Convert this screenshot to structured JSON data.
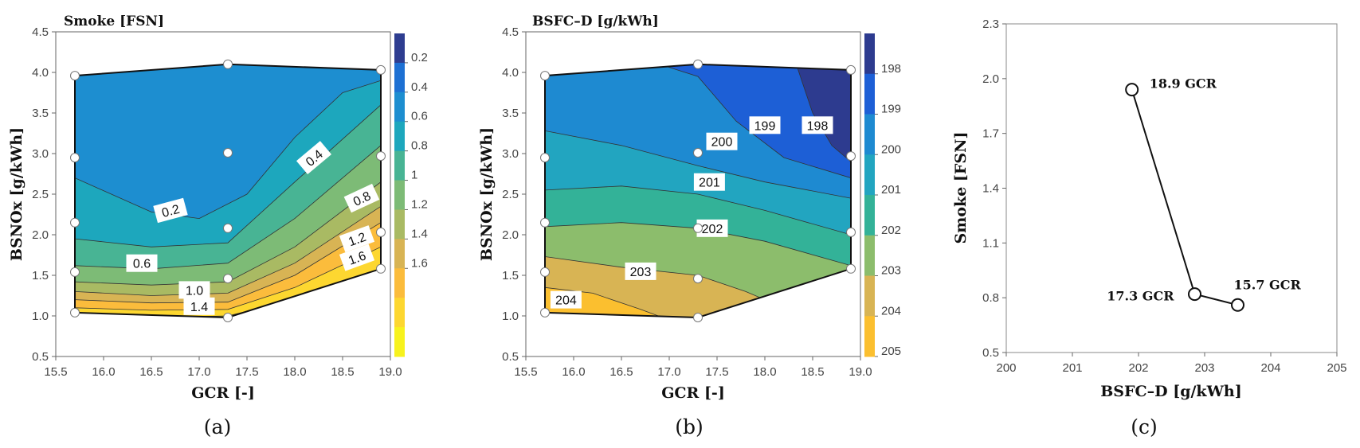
{
  "colors": {
    "smoke_bands": [
      "#f7f21d",
      "#fdd730",
      "#fbbc3c",
      "#d8b454",
      "#a9ba63",
      "#7dbb76",
      "#48b494",
      "#1da7bd",
      "#1d8ed0",
      "#1d70d3",
      "#2e3d90"
    ],
    "bsfc_bands": [
      "#fbbf2f",
      "#d8b454",
      "#8cbd6c",
      "#33b298",
      "#22a5c0",
      "#1e8ad1",
      "#1d5fd6",
      "#2d3b8f"
    ]
  },
  "chart_data": [
    {
      "id": "a",
      "type": "contour",
      "panel_label": "(a)",
      "title": "Smoke [FSN]",
      "xlabel": "GCR [-]",
      "ylabel": "BSNOx [g/kWh]",
      "xlim": [
        15.5,
        19.0
      ],
      "ylim": [
        0.5,
        4.5
      ],
      "xticks": [
        "15.5",
        "16.0",
        "16.5",
        "17.0",
        "17.5",
        "18.0",
        "18.5",
        "19.0"
      ],
      "yticks": [
        "0.5",
        "1.0",
        "1.5",
        "2.0",
        "2.5",
        "3.0",
        "3.5",
        "4.0",
        "4.5"
      ],
      "colorbar_ticks": [
        "0.2",
        "0.4",
        "0.6",
        "0.8",
        "1",
        "1.2",
        "1.4",
        "1.6"
      ],
      "region": [
        [
          15.7,
          1.04
        ],
        [
          17.3,
          0.98
        ],
        [
          18.9,
          1.58
        ],
        [
          18.9,
          4.03
        ],
        [
          17.3,
          4.1
        ],
        [
          15.7,
          3.96
        ]
      ],
      "boundaries": [
        {
          "level": 1.6,
          "points": [
            [
              15.7,
              1.0
            ],
            [
              16.5,
              0.98
            ],
            [
              17.3,
              1.0
            ],
            [
              18.0,
              1.2
            ],
            [
              18.9,
              1.5
            ]
          ]
        },
        {
          "level": 1.4,
          "points": [
            [
              15.7,
              1.1
            ],
            [
              16.5,
              1.07
            ],
            [
              17.3,
              1.08
            ],
            [
              18.0,
              1.35
            ],
            [
              18.9,
              1.85
            ]
          ]
        },
        {
          "level": 1.2,
          "points": [
            [
              15.7,
              1.2
            ],
            [
              16.5,
              1.16
            ],
            [
              17.3,
              1.17
            ],
            [
              18.0,
              1.5
            ],
            [
              18.9,
              2.15
            ]
          ]
        },
        {
          "level": 1.0,
          "points": [
            [
              15.7,
              1.3
            ],
            [
              16.5,
              1.25
            ],
            [
              17.3,
              1.28
            ],
            [
              18.0,
              1.65
            ],
            [
              18.9,
              2.35
            ]
          ]
        },
        {
          "level": 0.8,
          "points": [
            [
              15.7,
              1.42
            ],
            [
              16.5,
              1.38
            ],
            [
              17.3,
              1.42
            ],
            [
              18.0,
              1.85
            ],
            [
              18.9,
              2.65
            ]
          ]
        },
        {
          "level": 0.6,
          "points": [
            [
              15.7,
              1.62
            ],
            [
              16.5,
              1.58
            ],
            [
              17.3,
              1.65
            ],
            [
              18.0,
              2.2
            ],
            [
              18.9,
              3.1
            ]
          ]
        },
        {
          "level": 0.4,
          "points": [
            [
              15.7,
              1.95
            ],
            [
              16.5,
              1.85
            ],
            [
              17.3,
              1.9
            ],
            [
              18.0,
              2.65
            ],
            [
              18.9,
              3.6
            ]
          ]
        },
        {
          "level": 0.2,
          "points": [
            [
              15.7,
              2.7
            ],
            [
              16.5,
              2.28
            ],
            [
              17.0,
              2.2
            ],
            [
              17.5,
              2.5
            ],
            [
              18.0,
              3.2
            ],
            [
              18.5,
              3.75
            ],
            [
              18.9,
              3.9
            ]
          ]
        }
      ],
      "contour_labels": [
        {
          "text": "0.2",
          "x": 16.7,
          "y": 2.3,
          "angle": -15
        },
        {
          "text": "0.4",
          "x": 18.2,
          "y": 2.95,
          "angle": -40
        },
        {
          "text": "0.8",
          "x": 18.7,
          "y": 2.45,
          "angle": -25
        },
        {
          "text": "1.2",
          "x": 18.65,
          "y": 1.95,
          "angle": -20
        },
        {
          "text": "1.6",
          "x": 18.65,
          "y": 1.72,
          "angle": -20
        },
        {
          "text": "0.6",
          "x": 16.4,
          "y": 1.65,
          "angle": 0
        },
        {
          "text": "1.0",
          "x": 16.95,
          "y": 1.32,
          "angle": 0
        },
        {
          "text": "1.4",
          "x": 17.0,
          "y": 1.12,
          "angle": 0
        }
      ],
      "points": [
        [
          15.7,
          1.04
        ],
        [
          15.7,
          1.54
        ],
        [
          15.7,
          2.15
        ],
        [
          15.7,
          2.95
        ],
        [
          15.7,
          3.96
        ],
        [
          17.3,
          0.98
        ],
        [
          17.3,
          1.46
        ],
        [
          17.3,
          2.08
        ],
        [
          17.3,
          3.01
        ],
        [
          17.3,
          4.1
        ],
        [
          18.9,
          1.58
        ],
        [
          18.9,
          2.03
        ],
        [
          18.9,
          2.97
        ],
        [
          18.9,
          4.03
        ]
      ]
    },
    {
      "id": "b",
      "type": "contour",
      "panel_label": "(b)",
      "title": "BSFC–D [g/kWh]",
      "xlabel": "GCR [-]",
      "ylabel": "BSNOx [g/kWh]",
      "xlim": [
        15.5,
        19.0
      ],
      "ylim": [
        0.5,
        4.5
      ],
      "xticks": [
        "15.5",
        "16.0",
        "16.5",
        "17.0",
        "17.5",
        "18.0",
        "18.5",
        "19.0"
      ],
      "yticks": [
        "0.5",
        "1.0",
        "1.5",
        "2.0",
        "2.5",
        "3.0",
        "3.5",
        "4.0",
        "4.5"
      ],
      "colorbar_ticks": [
        "198",
        "199",
        "200",
        "201",
        "202",
        "203",
        "204",
        "205"
      ],
      "region": [
        [
          15.7,
          1.04
        ],
        [
          17.3,
          0.98
        ],
        [
          18.9,
          1.58
        ],
        [
          18.9,
          4.03
        ],
        [
          17.3,
          4.1
        ],
        [
          15.7,
          3.96
        ]
      ],
      "boundaries": [
        {
          "level": 204,
          "points": [
            [
              15.7,
              1.35
            ],
            [
              16.2,
              1.28
            ],
            [
              16.7,
              1.08
            ],
            [
              17.0,
              0.95
            ]
          ]
        },
        {
          "level": 203,
          "points": [
            [
              15.7,
              1.73
            ],
            [
              16.5,
              1.6
            ],
            [
              17.3,
              1.5
            ],
            [
              17.8,
              1.3
            ],
            [
              18.2,
              1.1
            ]
          ]
        },
        {
          "level": 202,
          "points": [
            [
              15.7,
              2.1
            ],
            [
              16.5,
              2.15
            ],
            [
              17.3,
              2.08
            ],
            [
              18.0,
              1.92
            ],
            [
              18.9,
              1.62
            ]
          ]
        },
        {
          "level": 201,
          "points": [
            [
              15.7,
              2.55
            ],
            [
              16.5,
              2.6
            ],
            [
              17.3,
              2.5
            ],
            [
              18.0,
              2.3
            ],
            [
              18.9,
              2.0
            ]
          ]
        },
        {
          "level": 200,
          "points": [
            [
              15.7,
              3.28
            ],
            [
              16.5,
              3.1
            ],
            [
              17.3,
              2.85
            ],
            [
              18.0,
              2.65
            ],
            [
              18.9,
              2.45
            ]
          ]
        },
        {
          "level": 199,
          "points": [
            [
              15.7,
              4.3
            ],
            [
              16.5,
              4.25
            ],
            [
              17.3,
              3.95
            ],
            [
              17.7,
              3.4
            ],
            [
              18.2,
              2.95
            ],
            [
              18.9,
              2.7
            ]
          ]
        },
        {
          "level": 198,
          "points": [
            [
              18.3,
              4.2
            ],
            [
              18.5,
              3.5
            ],
            [
              18.7,
              3.1
            ],
            [
              18.9,
              2.9
            ]
          ]
        }
      ],
      "contour_labels": [
        {
          "text": "204",
          "x": 15.92,
          "y": 1.2,
          "angle": 0
        },
        {
          "text": "203",
          "x": 16.7,
          "y": 1.55,
          "angle": 0
        },
        {
          "text": "202",
          "x": 17.45,
          "y": 2.08,
          "angle": 0
        },
        {
          "text": "201",
          "x": 17.42,
          "y": 2.65,
          "angle": 0
        },
        {
          "text": "200",
          "x": 17.55,
          "y": 3.15,
          "angle": 0
        },
        {
          "text": "199",
          "x": 18.0,
          "y": 3.35,
          "angle": 0
        },
        {
          "text": "198",
          "x": 18.55,
          "y": 3.35,
          "angle": 0
        }
      ],
      "points": [
        [
          15.7,
          1.04
        ],
        [
          15.7,
          1.54
        ],
        [
          15.7,
          2.15
        ],
        [
          15.7,
          2.95
        ],
        [
          15.7,
          3.96
        ],
        [
          17.3,
          0.98
        ],
        [
          17.3,
          1.46
        ],
        [
          17.3,
          2.08
        ],
        [
          17.3,
          3.01
        ],
        [
          17.3,
          4.1
        ],
        [
          18.9,
          1.58
        ],
        [
          18.9,
          2.03
        ],
        [
          18.9,
          2.97
        ],
        [
          18.9,
          4.03
        ]
      ]
    },
    {
      "id": "c",
      "type": "line",
      "panel_label": "(c)",
      "xlabel": "BSFC–D [g/kWh]",
      "ylabel": "Smoke [FSN]",
      "xlim": [
        200,
        205
      ],
      "ylim": [
        0.5,
        2.3
      ],
      "xticks": [
        "200",
        "201",
        "202",
        "203",
        "204",
        "205"
      ],
      "yticks": [
        "0.5",
        "0.8",
        "1.1",
        "1.4",
        "1.7",
        "2.0",
        "2.3"
      ],
      "points": [
        {
          "label": "18.9 GCR",
          "x": 201.9,
          "y": 1.94
        },
        {
          "label": "17.3 GCR",
          "x": 202.85,
          "y": 0.82
        },
        {
          "label": "15.7 GCR",
          "x": 203.5,
          "y": 0.76
        }
      ]
    }
  ]
}
